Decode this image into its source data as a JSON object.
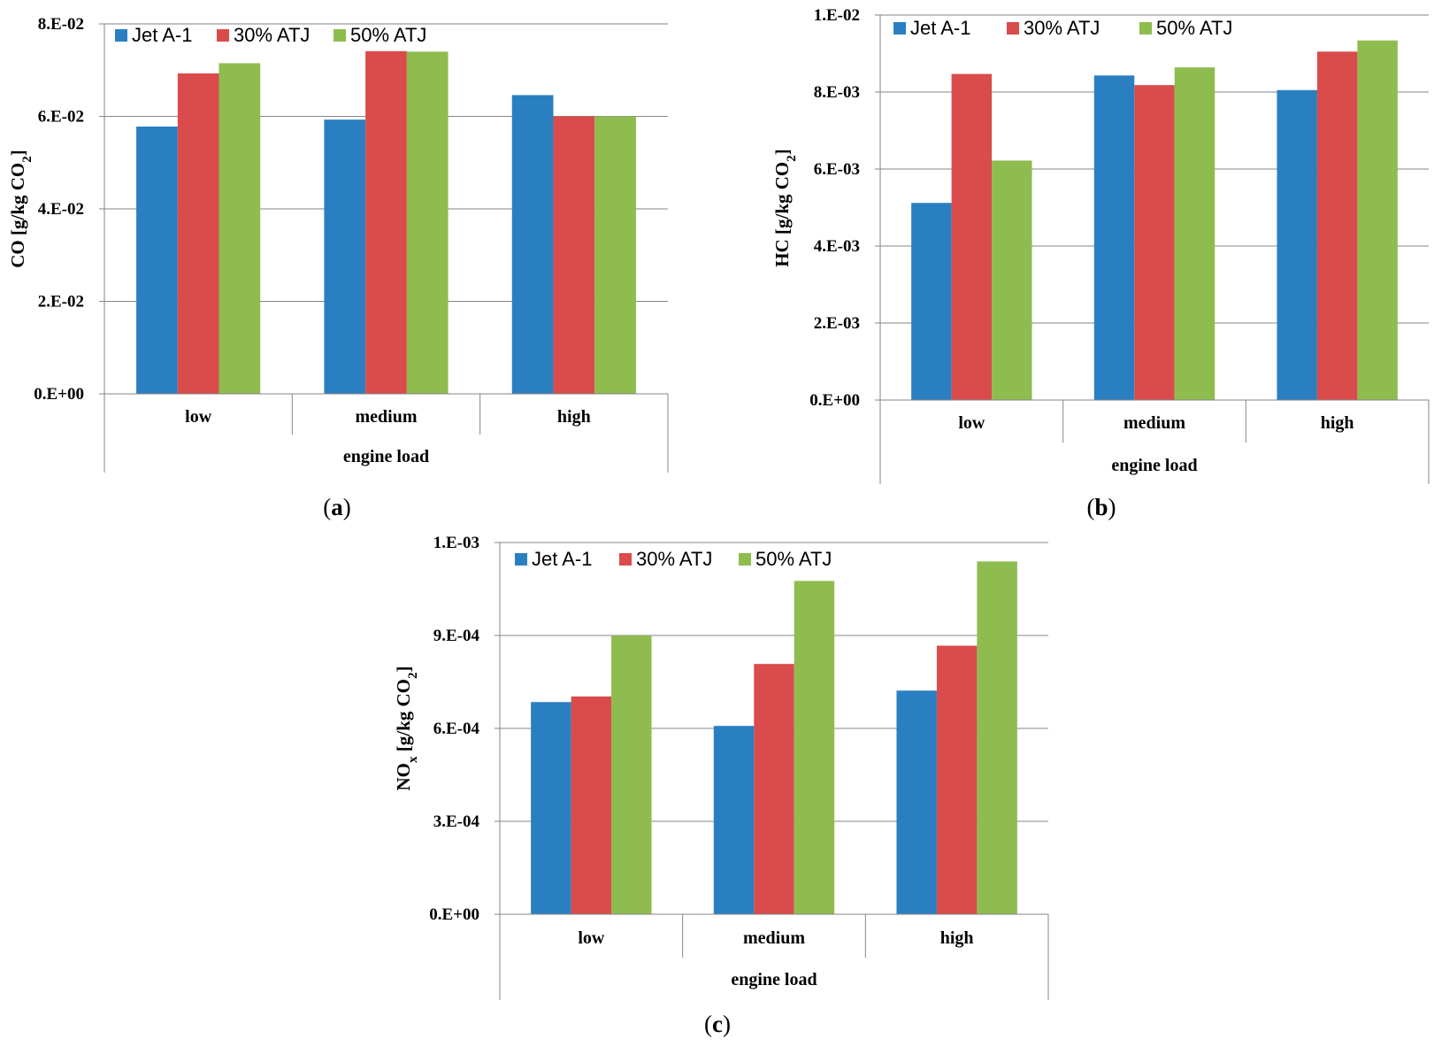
{
  "chart_data": [
    {
      "id": "a",
      "type": "bar",
      "panel_label": "a",
      "categories": [
        "low",
        "medium",
        "high"
      ],
      "series": [
        {
          "name": "Jet A-1",
          "color": "#2a7fc1",
          "values": [
            0.0578,
            0.0593,
            0.0646
          ]
        },
        {
          "name": "30% ATJ",
          "color": "#da4b4b",
          "values": [
            0.0693,
            0.0741,
            0.06
          ]
        },
        {
          "name": "50% ATJ",
          "color": "#8fbc4f",
          "values": [
            0.0715,
            0.074,
            0.06
          ]
        }
      ],
      "ylim": [
        0,
        0.08
      ],
      "yticks": [
        0,
        0.02,
        0.04,
        0.06,
        0.08
      ],
      "ytick_labels": [
        "0.E+00",
        "2.E-02",
        "4.E-02",
        "6.E-02",
        "8.E-02"
      ],
      "ylabel": "CO [g/kg CO",
      "ylabel_sub": "2",
      "ylabel_tail": "]",
      "xlabel": "engine load",
      "legend_position": "top-left"
    },
    {
      "id": "b",
      "type": "bar",
      "panel_label": "b",
      "categories": [
        "low",
        "medium",
        "high"
      ],
      "series": [
        {
          "name": "Jet A-1",
          "color": "#2a7fc1",
          "values": [
            0.00512,
            0.00843,
            0.00805
          ]
        },
        {
          "name": "30% ATJ",
          "color": "#da4b4b",
          "values": [
            0.00847,
            0.00818,
            0.00905
          ]
        },
        {
          "name": "50% ATJ",
          "color": "#8fbc4f",
          "values": [
            0.00622,
            0.00864,
            0.00934
          ]
        }
      ],
      "ylim": [
        0,
        0.01
      ],
      "yticks": [
        0,
        0.002,
        0.004,
        0.006,
        0.008,
        0.01
      ],
      "ytick_labels": [
        "0.E+00",
        "2.E-03",
        "4.E-03",
        "6.E-03",
        "8.E-03",
        "1.E-02"
      ],
      "ylabel": "HC [g/kg CO",
      "ylabel_sub": "2",
      "ylabel_tail": "]",
      "xlabel": "engine load",
      "legend_position": "top-left"
    },
    {
      "id": "c",
      "type": "bar",
      "panel_label": "c",
      "categories": [
        "low",
        "medium",
        "high"
      ],
      "series": [
        {
          "name": "Jet A-1",
          "color": "#2a7fc1",
          "values": [
            0.000685,
            0.000608,
            0.000722
          ]
        },
        {
          "name": "30% ATJ",
          "color": "#da4b4b",
          "values": [
            0.000703,
            0.000808,
            0.000867
          ]
        },
        {
          "name": "50% ATJ",
          "color": "#8fbc4f",
          "values": [
            0.0009,
            0.001076,
            0.001139
          ]
        }
      ],
      "ylim": [
        0,
        0.0012
      ],
      "yticks": [
        0,
        0.0003,
        0.0006,
        0.0009,
        0.0012
      ],
      "ytick_labels": [
        "0.E+00",
        "3.E-04",
        "6.E-04",
        "9.E-04",
        "1.E-03"
      ],
      "ylabel": "NO",
      "ylabel_sub": "x",
      "ylabel_tail": " [g/kg CO",
      "ylabel_sub2": "2",
      "ylabel_tail2": "]",
      "xlabel": "engine load",
      "legend_position": "top-left"
    }
  ]
}
